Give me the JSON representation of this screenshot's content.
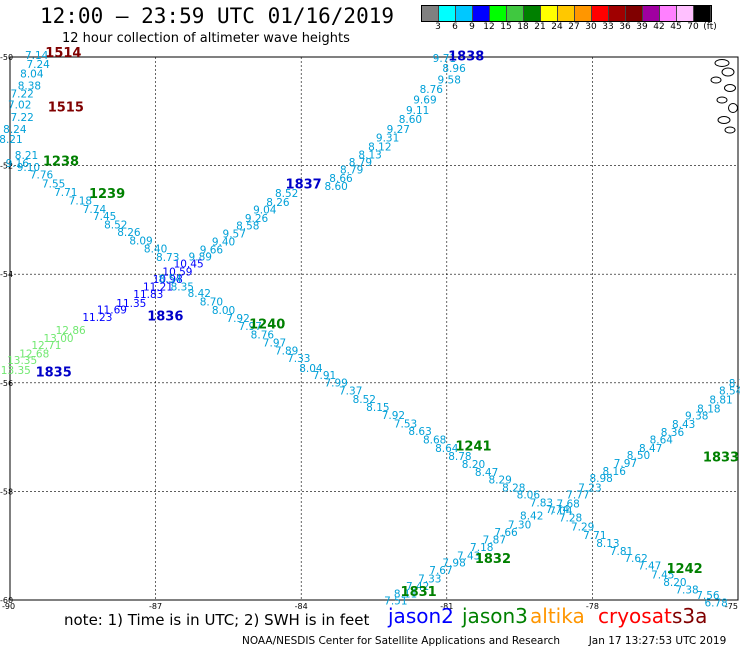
{
  "header": {
    "title": "12:00 – 23:59 UTC 01/16/2019",
    "subtitle": "12 hour collection of altimeter wave heights"
  },
  "colorbar": {
    "colors": [
      "#808080",
      "#00ffff",
      "#00c8ff",
      "#0000ff",
      "#00ff00",
      "#40c840",
      "#008000",
      "#ffff00",
      "#ffc800",
      "#ff9600",
      "#ff0000",
      "#a00000",
      "#800000",
      "#a000a0",
      "#ff80ff",
      "#ffc0ff",
      "#000000"
    ],
    "labels": [
      "3",
      "6",
      "9",
      "12",
      "15",
      "18",
      "21",
      "24",
      "27",
      "30",
      "33",
      "36",
      "39",
      "42",
      "45",
      "70",
      "(ft)"
    ]
  },
  "map": {
    "lon_labels": [
      "-90",
      "-87",
      "-84",
      "-81",
      "-78",
      "-75"
    ],
    "lat_labels": [
      "-50",
      "-52",
      "-54",
      "-56",
      "-58",
      "-60"
    ]
  },
  "tracks": [
    {
      "name": "1838",
      "color": "#0000c8",
      "label": {
        "text": "1838",
        "lon": -80.6,
        "lat": -50.06
      },
      "points": [
        [
          -81.05,
          -50.09,
          "9.71"
        ],
        [
          -80.85,
          -50.28,
          "8.96"
        ],
        [
          -80.95,
          -50.49,
          "9.58"
        ],
        [
          -81.32,
          -50.66,
          "8.76"
        ],
        [
          -81.45,
          -50.86,
          "9.69"
        ],
        [
          -81.6,
          -51.05,
          "9.11"
        ],
        [
          -81.75,
          -51.22,
          "8.60"
        ],
        [
          -82.0,
          -51.4,
          "9.27"
        ],
        [
          -82.22,
          -51.56,
          "9.31"
        ],
        [
          -82.38,
          -51.72,
          "8.12"
        ],
        [
          -82.58,
          -51.87,
          "8.13"
        ],
        [
          -82.78,
          -52.01,
          "8.79"
        ],
        [
          -82.96,
          -52.15,
          "8.79"
        ],
        [
          -83.18,
          -52.3,
          "8.66"
        ],
        [
          -83.28,
          -52.45,
          "8.60"
        ]
      ]
    },
    {
      "name": "1837",
      "color": "#0000c8",
      "label": {
        "text": "1837",
        "lon": -83.95,
        "lat": -52.42
      },
      "points": [
        [
          -84.3,
          -52.58,
          "8.52"
        ],
        [
          -84.48,
          -52.74,
          "8.26"
        ],
        [
          -84.75,
          -52.88,
          "9.04"
        ],
        [
          -84.92,
          -53.04,
          "9.26"
        ],
        [
          -85.1,
          -53.18,
          "8.58"
        ],
        [
          -85.38,
          -53.32,
          "9.57"
        ],
        [
          -85.6,
          -53.47,
          "9.40"
        ],
        [
          -85.85,
          -53.62,
          "9.66"
        ],
        [
          -86.08,
          -53.75,
          "9.89"
        ],
        [
          -86.32,
          -53.88,
          "10.45"
        ],
        [
          -86.55,
          -54.02,
          "10.59"
        ],
        [
          -86.75,
          -54.16,
          "10.98"
        ],
        [
          -86.95,
          -54.3,
          "11.21"
        ],
        [
          -87.15,
          -54.44,
          "11.83"
        ],
        [
          -87.5,
          -54.6,
          "11.35"
        ],
        [
          -87.9,
          -54.72,
          "11.69"
        ],
        [
          -88.2,
          -54.86,
          "11.23"
        ]
      ]
    },
    {
      "name": "1836",
      "color": "#0000c8",
      "label": {
        "text": "1836",
        "lon": -86.8,
        "lat": -54.85
      },
      "points": [
        [
          -88.75,
          -55.1,
          "12.86"
        ],
        [
          -89.0,
          -55.25,
          "13.00"
        ],
        [
          -89.25,
          -55.38,
          "12.71"
        ],
        [
          -89.5,
          -55.53,
          "12.68"
        ],
        [
          -89.75,
          -55.65,
          "13.35"
        ],
        [
          -89.88,
          -55.84,
          "13.35"
        ]
      ]
    },
    {
      "name": "1835",
      "color": "#0000c8",
      "label": {
        "text": "1835",
        "lon": -89.1,
        "lat": -55.88
      },
      "points": []
    },
    {
      "name": "1238",
      "color": "#008000",
      "label": {
        "text": "1238",
        "lon": -88.95,
        "lat": -52.0
      },
      "points": [
        [
          -89.66,
          -51.88,
          "8.21"
        ],
        [
          -89.85,
          -52.03,
          "9.16"
        ],
        [
          -89.62,
          -52.1,
          "9.10"
        ],
        [
          -89.35,
          -52.24,
          "7.76"
        ],
        [
          -89.1,
          -52.4,
          "7.55"
        ],
        [
          -88.85,
          -52.56,
          "7.71"
        ],
        [
          -88.55,
          -52.72,
          "7.18"
        ],
        [
          -88.26,
          -52.87,
          "7.74"
        ],
        [
          -88.05,
          -53.0,
          "7.45"
        ],
        [
          -87.82,
          -53.16,
          "8.52"
        ],
        [
          -87.55,
          -53.3,
          "8.26"
        ],
        [
          -87.3,
          -53.45,
          "8.09"
        ],
        [
          -87.0,
          -53.6,
          "8.40"
        ],
        [
          -86.75,
          -53.76,
          "8.73"
        ]
      ]
    },
    {
      "name": "1239",
      "color": "#008000",
      "label": {
        "text": "1239",
        "lon": -88.0,
        "lat": -52.6
      },
      "points": []
    },
    {
      "name": "1240",
      "color": "#008000",
      "label": {
        "text": "1240",
        "lon": -84.7,
        "lat": -55.0
      },
      "points": [
        [
          -86.7,
          -54.15,
          "8.54"
        ],
        [
          -86.45,
          -54.3,
          "8.35"
        ],
        [
          -86.1,
          -54.42,
          "8.42"
        ],
        [
          -85.85,
          -54.58,
          "8.70"
        ],
        [
          -85.6,
          -54.73,
          "8.00"
        ],
        [
          -85.3,
          -54.88,
          "7.92"
        ],
        [
          -85.05,
          -55.03,
          "7.97"
        ],
        [
          -84.8,
          -55.18,
          "8.76"
        ],
        [
          -84.55,
          -55.33,
          "7.97"
        ],
        [
          -84.3,
          -55.48,
          "7.89"
        ],
        [
          -84.05,
          -55.62,
          "7.33"
        ],
        [
          -83.8,
          -55.8,
          "8.04"
        ],
        [
          -83.52,
          -55.93,
          "7.91"
        ],
        [
          -83.28,
          -56.07,
          "7.99"
        ],
        [
          -82.98,
          -56.22,
          "7.37"
        ],
        [
          -82.7,
          -56.37,
          "8.52"
        ],
        [
          -82.42,
          -56.52,
          "8.15"
        ],
        [
          -82.1,
          -56.67,
          "7.92"
        ],
        [
          -81.85,
          -56.82,
          "7.53"
        ],
        [
          -81.55,
          -56.96,
          "8.63"
        ],
        [
          -81.25,
          -57.12,
          "8.68"
        ],
        [
          -81.0,
          -57.27,
          "8.64"
        ],
        [
          -80.73,
          -57.42,
          "8.78"
        ],
        [
          -80.45,
          -57.57,
          "8.20"
        ],
        [
          -80.18,
          -57.72,
          "8.47"
        ],
        [
          -79.9,
          -57.85,
          "8.29"
        ]
      ]
    },
    {
      "name": "1241",
      "color": "#008000",
      "label": {
        "text": "1241",
        "lon": -80.45,
        "lat": -57.25
      },
      "points": [
        [
          -79.62,
          -58.0,
          "8.28"
        ],
        [
          -79.32,
          -58.13,
          "8.06"
        ],
        [
          -79.05,
          -58.28,
          "7.83"
        ],
        [
          -78.72,
          -58.4,
          "7.74"
        ],
        [
          -78.45,
          -58.55,
          "7.28"
        ],
        [
          -78.2,
          -58.72,
          "7.29"
        ],
        [
          -77.95,
          -58.88,
          "7.71"
        ],
        [
          -77.68,
          -59.02,
          "8.13"
        ],
        [
          -77.4,
          -59.17,
          "7.81"
        ],
        [
          -77.1,
          -59.3,
          "7.62"
        ],
        [
          -76.82,
          -59.44,
          "7.47"
        ],
        [
          -76.55,
          -59.6,
          "7.45"
        ],
        [
          -76.3,
          -59.74,
          "8.20"
        ],
        [
          -76.05,
          -59.88,
          "7.38"
        ],
        [
          -75.62,
          -59.98,
          "7.56"
        ],
        [
          -75.45,
          -60.12,
          "6.78"
        ]
      ]
    },
    {
      "name": "1242",
      "color": "#008000",
      "label": {
        "text": "1242",
        "lon": -76.1,
        "lat": -59.5
      },
      "points": []
    },
    {
      "name": "1833",
      "color": "#008000",
      "label": {
        "text": "1833",
        "lon": -75.35,
        "lat": -57.45
      },
      "points": [
        [
          -74.95,
          -56.08,
          "8.76"
        ],
        [
          -75.15,
          -56.22,
          "8.54"
        ],
        [
          -75.35,
          -56.38,
          "8.81"
        ],
        [
          -75.6,
          -56.55,
          "8.18"
        ],
        [
          -75.85,
          -56.68,
          "9.38"
        ],
        [
          -76.12,
          -56.83,
          "8.43"
        ],
        [
          -76.35,
          -56.98,
          "8.36"
        ],
        [
          -76.58,
          -57.12,
          "8.64"
        ],
        [
          -76.8,
          -57.27,
          "8.47"
        ],
        [
          -77.05,
          -57.4,
          "8.50"
        ],
        [
          -77.32,
          -57.55,
          "7.97"
        ],
        [
          -77.55,
          -57.7,
          "8.16"
        ],
        [
          -77.82,
          -57.83,
          "8.98"
        ],
        [
          -78.05,
          -58.0,
          "7.23"
        ],
        [
          -78.3,
          -58.13,
          "7.77"
        ],
        [
          -78.5,
          -58.3,
          "7.68"
        ],
        [
          -78.65,
          -58.43,
          "7.04"
        ]
      ]
    },
    {
      "name": "1832",
      "color": "#008000",
      "label": {
        "text": "1832",
        "lon": -80.05,
        "lat": -59.32
      },
      "points": [
        [
          -79.25,
          -58.52,
          "8.42"
        ],
        [
          -79.5,
          -58.68,
          "7.30"
        ],
        [
          -79.78,
          -58.82,
          "7.66"
        ],
        [
          -80.02,
          -58.96,
          "7.87"
        ],
        [
          -80.28,
          -59.1,
          "7.18"
        ],
        [
          -80.55,
          -59.25,
          "7.43"
        ],
        [
          -80.85,
          -59.38,
          "7.98"
        ],
        [
          -81.12,
          -59.52,
          "7.67"
        ],
        [
          -81.35,
          -59.68,
          "7.33"
        ],
        [
          -81.6,
          -59.82,
          "7.42"
        ],
        [
          -81.85,
          -59.95,
          "8.11"
        ],
        [
          -82.05,
          -60.08,
          "7.51"
        ]
      ]
    },
    {
      "name": "1831",
      "color": "#008000",
      "label": {
        "text": "1831",
        "lon": -81.58,
        "lat": -59.93
      },
      "points": []
    },
    {
      "name": "1514",
      "color": "#800000",
      "label": {
        "text": "1514",
        "lon": -88.9,
        "lat": -50.0
      },
      "points": [
        [
          -89.45,
          -50.04,
          "7.14"
        ],
        [
          -89.42,
          -50.2,
          "7.24"
        ],
        [
          -89.55,
          -50.38,
          "8.04"
        ],
        [
          -89.6,
          -50.6,
          "8.38"
        ],
        [
          -89.75,
          -50.75,
          "7.22"
        ],
        [
          -89.8,
          -50.95,
          "7.02"
        ],
        [
          -89.75,
          -51.18,
          "7.22"
        ],
        [
          -89.9,
          -51.4,
          "8.24"
        ],
        [
          -89.98,
          -51.58,
          "8.21"
        ]
      ]
    },
    {
      "name": "1515",
      "color": "#800000",
      "label": {
        "text": "1515",
        "lon": -88.85,
        "lat": -51.0
      },
      "points": []
    }
  ],
  "note": {
    "text": "note:  1) Time is in UTC;  2) SWH is in feet"
  },
  "legend": [
    {
      "text": "jason2",
      "color": "#0000ff"
    },
    {
      "text": "jason3",
      "color": "#008000"
    },
    {
      "text": "altika",
      "color": "#ff9600"
    },
    {
      "text": "cryosat",
      "color": "#ff0000"
    },
    {
      "text": "s3a",
      "color": "#800000"
    }
  ],
  "credit": {
    "left": "NOAA/NESDIS Center for Satellite Applications and Research",
    "right": "Jan 17 13:27:53 UTC 2019"
  }
}
